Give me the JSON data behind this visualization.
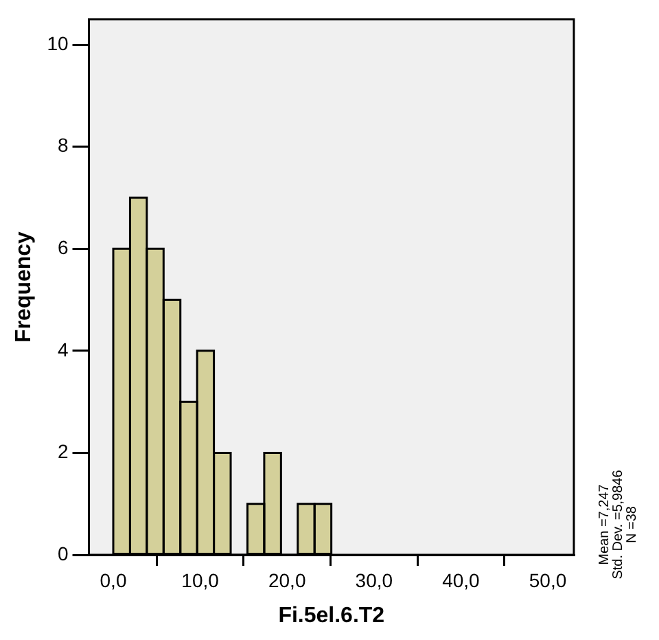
{
  "chart_data": {
    "type": "histogram",
    "xlabel": "Fi.5el.6.T2",
    "ylabel": "Frequency",
    "bins": [
      0,
      1.93,
      3.86,
      5.79,
      7.72,
      9.65,
      11.58,
      13.51,
      15.44,
      17.37,
      19.3,
      21.23,
      23.16,
      25.09
    ],
    "values": [
      6,
      7,
      6,
      5,
      3,
      4,
      2,
      0,
      1,
      2,
      0,
      1,
      1
    ],
    "color": "#d4d09a",
    "xlim": [
      -2.8,
      53
    ],
    "ylim": [
      0,
      10.5
    ],
    "xticks": [
      {
        "value": 0,
        "label": "0,0"
      },
      {
        "value": 10,
        "label": "10,0"
      },
      {
        "value": 20,
        "label": "20,0"
      },
      {
        "value": 30,
        "label": "30,0"
      },
      {
        "value": 40,
        "label": "40,0"
      },
      {
        "value": 50,
        "label": "50,0"
      }
    ],
    "yticks": [
      0,
      2,
      4,
      6,
      8,
      10
    ],
    "grid": false,
    "legend": false,
    "annotations": [
      "Mean =7,247",
      "Std. Dev. =5,9846",
      "N =38"
    ]
  }
}
